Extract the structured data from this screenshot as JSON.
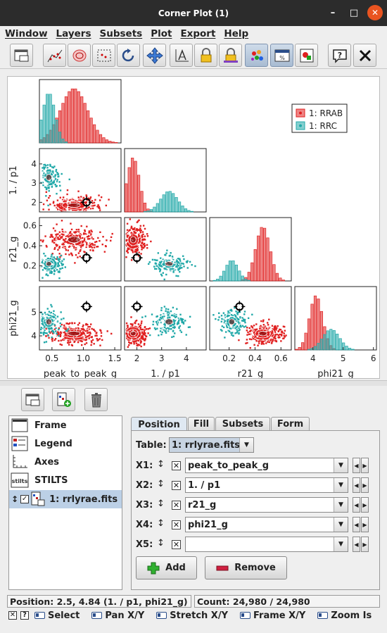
{
  "window": {
    "title": "Corner Plot (1)"
  },
  "menu": [
    "Window",
    "Layers",
    "Subsets",
    "Plot",
    "Export",
    "Help"
  ],
  "toolbar_icons": [
    "window-icon",
    "scatter-points-icon",
    "density-icon",
    "subset-icon",
    "replot-icon",
    "navigate-icon",
    "axes-icon",
    "lock-aspect-icon",
    "lock-colour-icon",
    "aux-colour-icon",
    "legend-icon",
    "export-image-icon",
    "help-icon",
    "close-icon"
  ],
  "legend": {
    "items": [
      {
        "label": "1: RRAB",
        "color": "#e02020"
      },
      {
        "label": "1: RRC",
        "color": "#20a8a8"
      }
    ]
  },
  "colors": {
    "rrab": "#e02020",
    "rrc": "#20a8a8",
    "selection": "#bcd0e6"
  },
  "axes": {
    "x_labels": [
      "peak_to_peak_g",
      "1. / p1",
      "r21_g",
      "phi21_g"
    ],
    "y_labels": [
      "1. / p1",
      "r21_g",
      "phi21_g"
    ],
    "x_ticks": [
      [
        "0.5",
        "1.0",
        "1.5"
      ],
      [
        "2",
        "3",
        "4"
      ],
      [
        "0.2",
        "0.4",
        "0.6"
      ],
      [
        "4",
        "5",
        "6"
      ]
    ],
    "y_ticks": [
      [
        "2",
        "3",
        "4"
      ],
      [
        "0.2",
        "0.4",
        "0.6"
      ],
      [
        "4",
        "5"
      ]
    ]
  },
  "layers": {
    "items": [
      {
        "label": "Frame",
        "icon": "frame-icon"
      },
      {
        "label": "Legend",
        "icon": "legend-layer-icon"
      },
      {
        "label": "Axes",
        "icon": "axes-layer-icon"
      },
      {
        "label": "STILTS",
        "icon": "stilts-icon"
      }
    ],
    "data_layer": {
      "label": "1: rrlyrae.fits",
      "checked": true
    }
  },
  "tabs": [
    "Position",
    "Fill",
    "Subsets",
    "Form"
  ],
  "form": {
    "table_label": "Table:",
    "table_value": "1: rrlyrae.fits",
    "rows": [
      {
        "label": "X1:",
        "value": "peak_to_peak_g"
      },
      {
        "label": "X2:",
        "value": "1. / p1"
      },
      {
        "label": "X3:",
        "value": "r21_g"
      },
      {
        "label": "X4:",
        "value": "phi21_g"
      },
      {
        "label": "X5:",
        "value": ""
      }
    ],
    "add_label": "Add",
    "remove_label": "Remove"
  },
  "status": {
    "position": "Position: 2.5, 4.84 (1. / p1, phi21_g)",
    "count": "Count: 24,980 / 24,980"
  },
  "hints": [
    "Select",
    "Pan X/Y",
    "Stretch X/Y",
    "Frame X/Y",
    "Zoom Is"
  ],
  "chart_data": {
    "type": "scatter",
    "title": "",
    "series": [
      {
        "name": "1: RRAB",
        "color": "#e02020"
      },
      {
        "name": "1: RRC",
        "color": "#20a8a8"
      }
    ],
    "variables": [
      "peak_to_peak_g",
      "1. / p1",
      "r21_g",
      "phi21_g"
    ],
    "ranges": {
      "peak_to_peak_g": [
        0.3,
        1.6
      ],
      "1. / p1": [
        1.5,
        4.8
      ],
      "r21_g": [
        0.05,
        0.68
      ],
      "phi21_g": [
        3.4,
        6.1
      ]
    },
    "clusters": [
      {
        "series": "1: RRAB",
        "peak_to_peak_g": 0.85,
        "1. / p1": 1.85,
        "r21_g": 0.46,
        "phi21_g": 4.1
      },
      {
        "series": "1: RRC",
        "peak_to_peak_g": 0.45,
        "1. / p1": 3.3,
        "r21_g": 0.22,
        "phi21_g": 4.6
      }
    ],
    "marker": {
      "peak_to_peak_g": 1.05,
      "1. / p1": 2.0,
      "r21_g": 0.28,
      "phi21_g": 5.25
    },
    "legend_position": "top-right"
  }
}
